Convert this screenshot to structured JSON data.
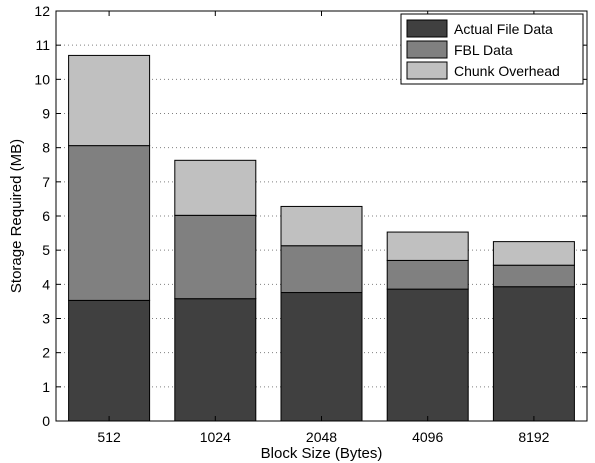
{
  "chart_data": {
    "type": "bar",
    "stacked": true,
    "xlabel": "Block Size (Bytes)",
    "ylabel": "Storage Required (MB)",
    "categories": [
      "512",
      "1024",
      "2048",
      "4096",
      "8192"
    ],
    "ylim": [
      0,
      12
    ],
    "yticks": [
      "0",
      "1",
      "2",
      "3",
      "4",
      "5",
      "6",
      "7",
      "8",
      "9",
      "10",
      "11",
      "12"
    ],
    "grid": "horizontal dotted",
    "legend_position": "top-right",
    "series": [
      {
        "name": "Actual File Data",
        "color": "#404040",
        "values": [
          3.53,
          3.58,
          3.76,
          3.86,
          3.93
        ]
      },
      {
        "name": "FBL Data",
        "color": "#808080",
        "values": [
          4.53,
          2.44,
          1.37,
          0.84,
          0.63
        ]
      },
      {
        "name": "Chunk Overhead",
        "color": "#c0c0c0",
        "values": [
          2.64,
          1.61,
          1.15,
          0.83,
          0.69
        ]
      }
    ]
  }
}
